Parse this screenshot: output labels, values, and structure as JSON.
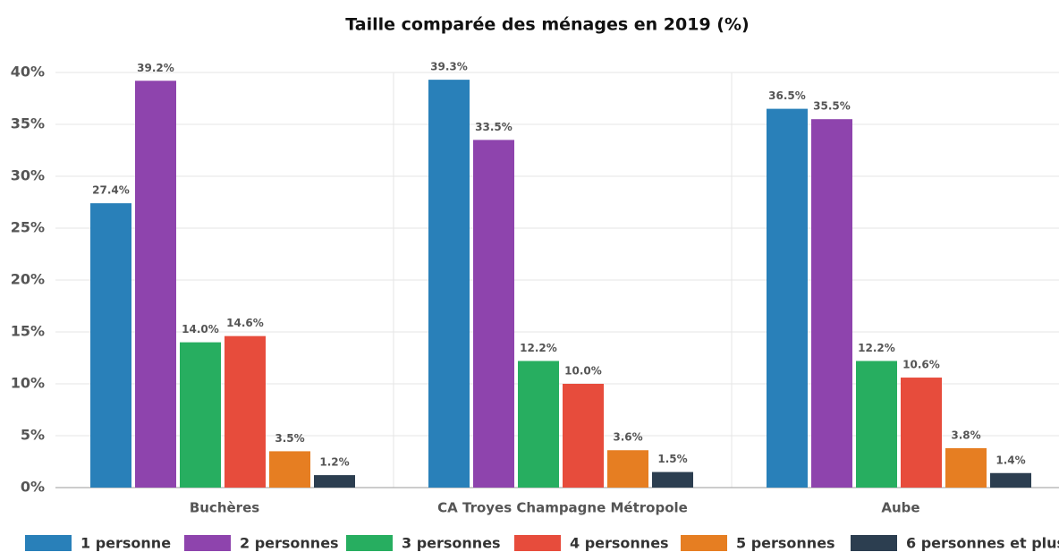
{
  "chart_data": {
    "type": "bar",
    "title": "Taille comparée des ménages en 2019 (%)",
    "categories": [
      "Buchères",
      "CA Troyes Champagne Métropole",
      "Aube"
    ],
    "series": [
      {
        "name": "1 personne",
        "color": "#2980b9",
        "values": [
          27.4,
          39.3,
          36.5
        ],
        "value_labels": [
          "27.4%",
          "39.3%",
          "36.5%"
        ]
      },
      {
        "name": "2 personnes",
        "color": "#8e44ad",
        "values": [
          39.2,
          33.5,
          35.5
        ],
        "value_labels": [
          "39.2%",
          "33.5%",
          "35.5%"
        ]
      },
      {
        "name": "3 personnes",
        "color": "#27ae60",
        "values": [
          14.0,
          12.2,
          12.2
        ],
        "value_labels": [
          "14.0%",
          "12.2%",
          "12.2%"
        ]
      },
      {
        "name": "4 personnes",
        "color": "#e74c3c",
        "values": [
          14.6,
          10.0,
          10.6
        ],
        "value_labels": [
          "14.6%",
          "10.0%",
          "10.6%"
        ]
      },
      {
        "name": "5 personnes",
        "color": "#e67e22",
        "values": [
          3.5,
          3.6,
          3.8
        ],
        "value_labels": [
          "3.5%",
          "3.6%",
          "3.8%"
        ]
      },
      {
        "name": "6 personnes et plus",
        "color": "#2c3e50",
        "values": [
          1.2,
          1.5,
          1.4
        ],
        "value_labels": [
          "1.2%",
          "1.5%",
          "1.4%"
        ]
      }
    ],
    "ylim": [
      0,
      40
    ],
    "yticks": [
      {
        "value": 0,
        "label": "0%"
      },
      {
        "value": 5,
        "label": "5%"
      },
      {
        "value": 10,
        "label": "10%"
      },
      {
        "value": 15,
        "label": "15%"
      },
      {
        "value": 20,
        "label": "20%"
      },
      {
        "value": 25,
        "label": "25%"
      },
      {
        "value": 30,
        "label": "30%"
      },
      {
        "value": 35,
        "label": "35%"
      },
      {
        "value": 40,
        "label": "40%"
      }
    ],
    "grid": true,
    "legend": "bottom"
  }
}
